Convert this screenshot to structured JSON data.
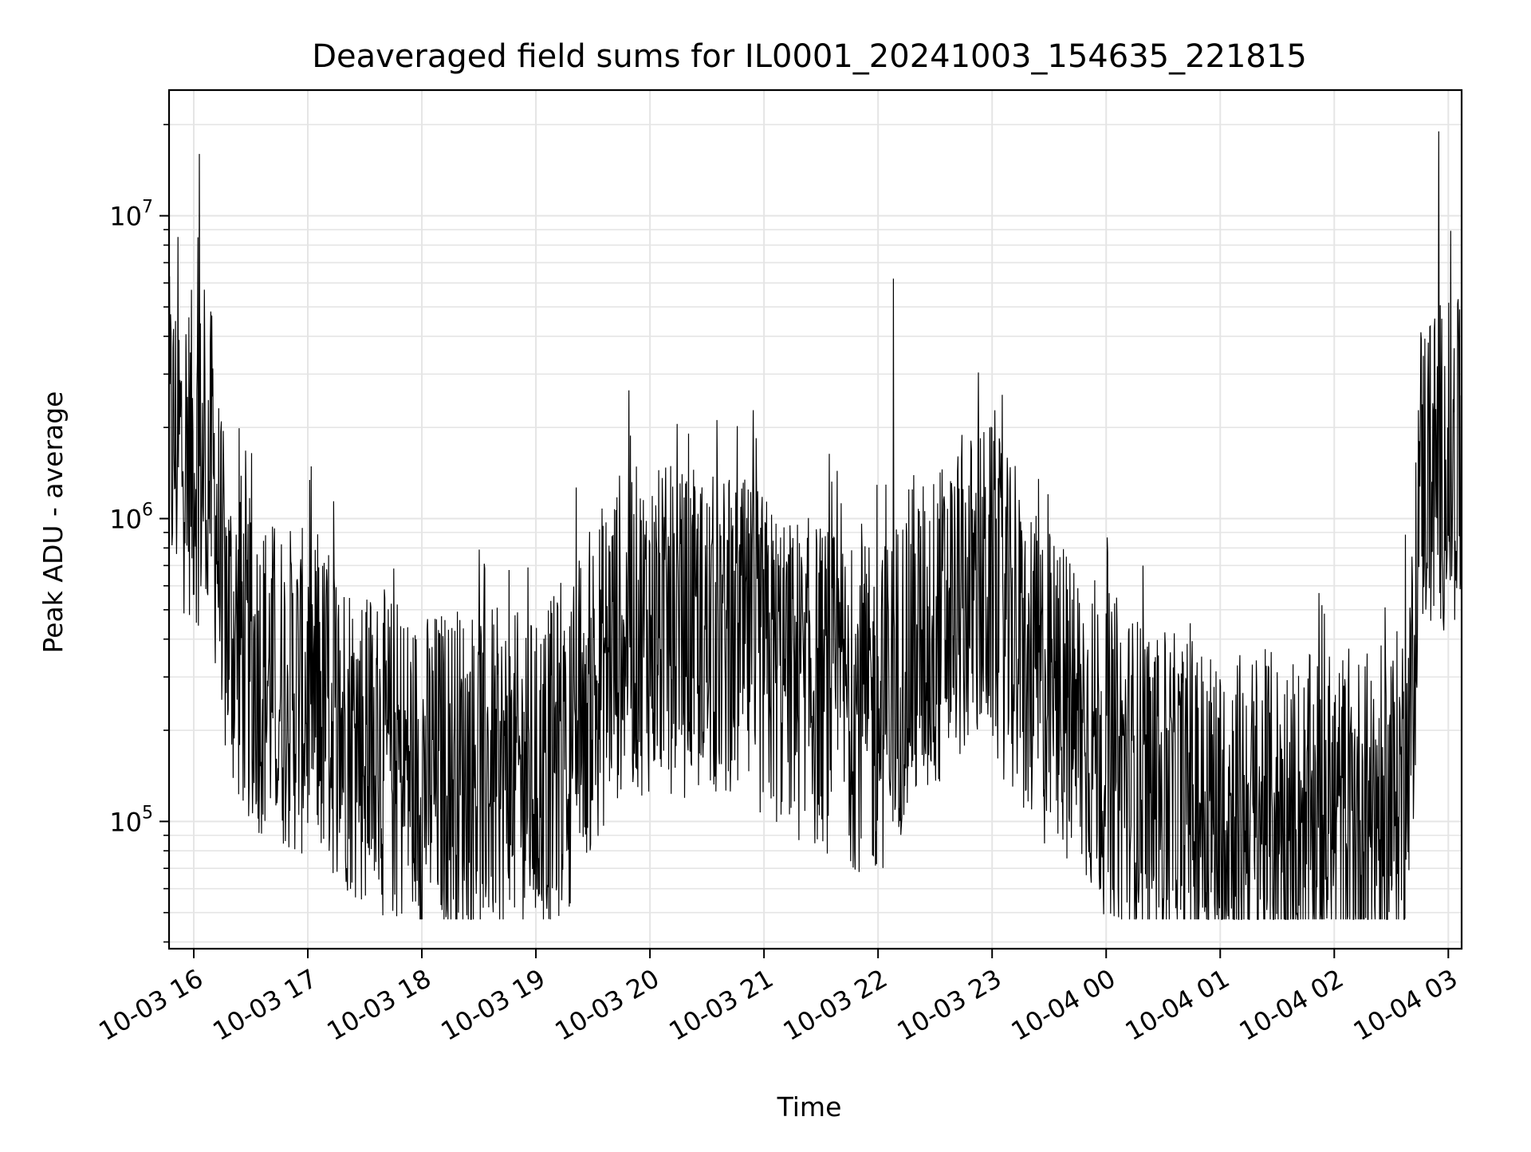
{
  "chart_data": {
    "type": "line",
    "title": "Deaveraged field sums for IL0001_20241003_154635_221815",
    "xlabel": "Time",
    "ylabel": "Peak ADU - average",
    "yscale": "log",
    "ylim": [
      38000,
      26000000
    ],
    "xlim": [
      "2024-10-03 15:47",
      "2024-10-04 03:07"
    ],
    "grid": true,
    "line_color": "#000000",
    "grid_color": "#e5e5e5",
    "x_ticks": [
      {
        "value": "2024-10-03 16:00",
        "label": "10-03 16"
      },
      {
        "value": "2024-10-03 17:00",
        "label": "10-03 17"
      },
      {
        "value": "2024-10-03 18:00",
        "label": "10-03 18"
      },
      {
        "value": "2024-10-03 19:00",
        "label": "10-03 19"
      },
      {
        "value": "2024-10-03 20:00",
        "label": "10-03 20"
      },
      {
        "value": "2024-10-03 21:00",
        "label": "10-03 21"
      },
      {
        "value": "2024-10-03 22:00",
        "label": "10-03 22"
      },
      {
        "value": "2024-10-03 23:00",
        "label": "10-03 23"
      },
      {
        "value": "2024-10-04 00:00",
        "label": "10-04 00"
      },
      {
        "value": "2024-10-04 01:00",
        "label": "10-04 01"
      },
      {
        "value": "2024-10-04 02:00",
        "label": "10-04 02"
      },
      {
        "value": "2024-10-04 03:00",
        "label": "10-04 03"
      }
    ],
    "y_ticks": [
      {
        "value": 100000,
        "base": "10",
        "exp": "5"
      },
      {
        "value": 1000000,
        "base": "10",
        "exp": "6"
      },
      {
        "value": 10000000,
        "base": "10",
        "exp": "7"
      }
    ],
    "series": [
      {
        "x": [
          "2024-10-03 15:47",
          "2024-10-03 15:55",
          "2024-10-03 16:00",
          "2024-10-03 16:03",
          "2024-10-03 16:05",
          "2024-10-03 16:10",
          "2024-10-03 16:15",
          "2024-10-03 16:20",
          "2024-10-03 16:30",
          "2024-10-03 16:45",
          "2024-10-03 17:00",
          "2024-10-03 17:15",
          "2024-10-03 17:30",
          "2024-10-03 17:45",
          "2024-10-03 18:00",
          "2024-10-03 18:15",
          "2024-10-03 18:30",
          "2024-10-03 18:45",
          "2024-10-03 19:00",
          "2024-10-03 19:15",
          "2024-10-03 19:30",
          "2024-10-03 19:45",
          "2024-10-03 20:00",
          "2024-10-03 20:15",
          "2024-10-03 20:30",
          "2024-10-03 20:45",
          "2024-10-03 21:00",
          "2024-10-03 21:15",
          "2024-10-03 21:30",
          "2024-10-03 21:45",
          "2024-10-03 22:00",
          "2024-10-03 22:08",
          "2024-10-03 22:15",
          "2024-10-03 22:30",
          "2024-10-03 22:45",
          "2024-10-03 23:00",
          "2024-10-03 23:15",
          "2024-10-03 23:30",
          "2024-10-03 23:45",
          "2024-10-04 00:00",
          "2024-10-04 00:15",
          "2024-10-04 00:30",
          "2024-10-04 00:45",
          "2024-10-04 01:00",
          "2024-10-04 01:15",
          "2024-10-04 01:30",
          "2024-10-04 01:45",
          "2024-10-04 02:00",
          "2024-10-04 02:15",
          "2024-10-04 02:30",
          "2024-10-04 02:40",
          "2024-10-04 02:45",
          "2024-10-04 02:52",
          "2024-10-04 02:55",
          "2024-10-04 03:00",
          "2024-10-04 03:07"
        ],
        "y": [
          1800000,
          1700000,
          1600000,
          16000000,
          1500000,
          1400000,
          550000,
          430000,
          330000,
          280000,
          260000,
          220000,
          180000,
          160000,
          140000,
          150000,
          150000,
          140000,
          140000,
          170000,
          280000,
          430000,
          430000,
          420000,
          400000,
          400000,
          350000,
          300000,
          280000,
          250000,
          220000,
          6200000,
          350000,
          420000,
          550000,
          600000,
          350000,
          270000,
          220000,
          170000,
          140000,
          120000,
          115000,
          110000,
          105000,
          105000,
          100000,
          105000,
          105000,
          110000,
          160000,
          1400000,
          1500000,
          19000000,
          1500000,
          1500000
        ]
      }
    ]
  }
}
